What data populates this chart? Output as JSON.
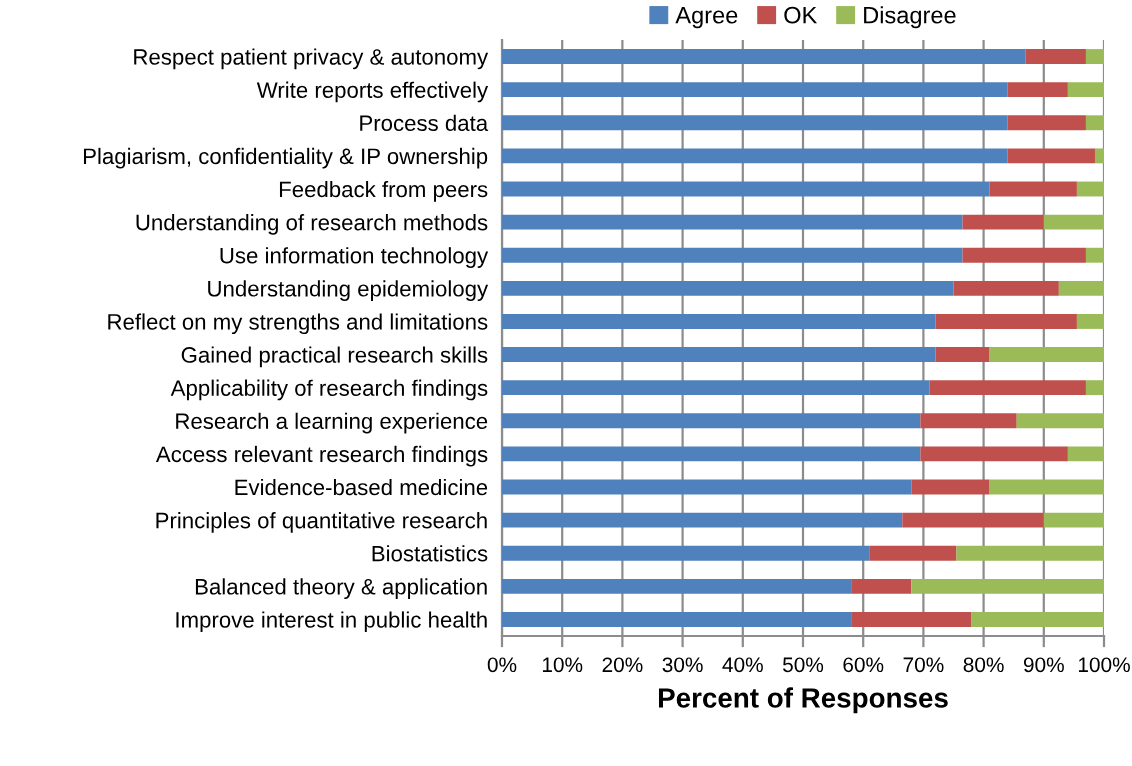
{
  "chart_data": {
    "type": "bar",
    "orientation": "horizontal",
    "stacked": true,
    "xlabel": "Percent of Responses",
    "categories": [
      "Respect patient privacy & autonomy",
      "Write reports effectively",
      "Process data",
      "Plagiarism, confidentiality & IP ownership",
      "Feedback from peers",
      "Understanding of research methods",
      "Use information technology",
      "Understanding epidemiology",
      "Reflect on my strengths and limitations",
      "Gained practical research skills",
      "Applicability of research findings",
      "Research a learning experience",
      "Access relevant research findings",
      "Evidence-based medicine",
      "Principles of quantitative research",
      "Biostatistics",
      "Balanced theory & application",
      "Improve interest in public health"
    ],
    "series": [
      {
        "name": "Agree",
        "color": "#4f81bd",
        "values": [
          87,
          84,
          84,
          84,
          81,
          76.5,
          76.5,
          75,
          72,
          72,
          71,
          69.5,
          69.5,
          68,
          66.5,
          61,
          58,
          58
        ]
      },
      {
        "name": "OK",
        "color": "#c0504d",
        "values": [
          10,
          10,
          13,
          14.5,
          14.5,
          13.5,
          20.5,
          17.5,
          23.5,
          9,
          26,
          16,
          24.5,
          13,
          23.5,
          14.5,
          10,
          20
        ]
      },
      {
        "name": "Disagree",
        "color": "#9bbb59",
        "values": [
          3,
          6,
          3,
          1.5,
          4.5,
          10,
          3,
          7.5,
          4.5,
          19,
          3,
          14.5,
          6,
          19,
          10,
          24.5,
          32,
          22
        ]
      }
    ],
    "xlim": [
      0,
      100
    ],
    "xticks": [
      {
        "value": 0,
        "label": "0%"
      },
      {
        "value": 10,
        "label": "10%"
      },
      {
        "value": 20,
        "label": "20%"
      },
      {
        "value": 30,
        "label": "30%"
      },
      {
        "value": 40,
        "label": "40%"
      },
      {
        "value": 50,
        "label": "50%"
      },
      {
        "value": 60,
        "label": "60%"
      },
      {
        "value": 70,
        "label": "70%"
      },
      {
        "value": 80,
        "label": "80%"
      },
      {
        "value": 90,
        "label": "90%"
      },
      {
        "value": 100,
        "label": "100%"
      }
    ],
    "grid": "x",
    "legend": "top"
  }
}
